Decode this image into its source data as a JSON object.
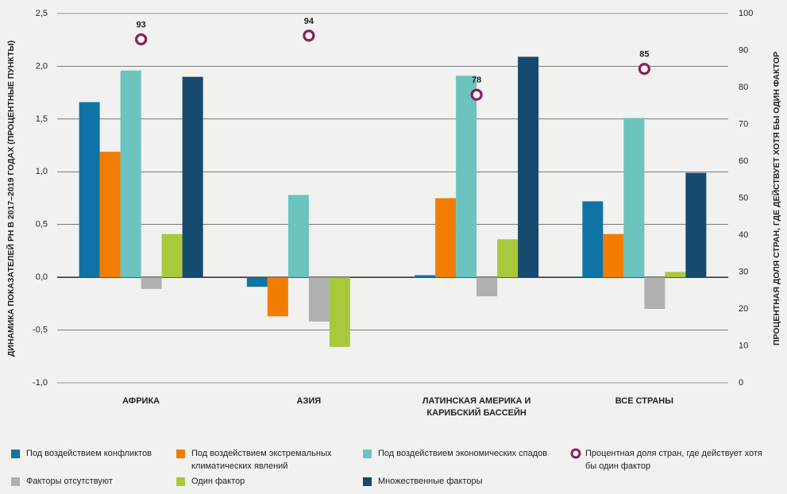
{
  "chart_data": {
    "type": "bar",
    "y_label": "ДИНАМИКА ПОКАЗАТЕЛЕЙ РН В 2017–2019 ГОДАХ (ПРОЦЕНТНЫЕ ПУНКТЫ)",
    "y2_label": "ПРОЦЕНТНАЯ ДОЛЯ СТРАН, ГДЕ ДЕЙСТВУЕТ ХОТЯ БЫ ОДИН ФАКТОР",
    "categories": [
      "АФРИКА",
      "АЗИЯ",
      "ЛАТИНСКАЯ АМЕРИКА И КАРИБСКИЙ БАССЕЙН",
      "ВСЕ СТРАНЫ"
    ],
    "series": [
      {
        "name": "Под воздействием конфликтов",
        "color": "#0f74a5",
        "values": [
          1.66,
          -0.09,
          0.02,
          0.72
        ]
      },
      {
        "name": "Под воздействием экстремальных климатических явлений",
        "color": "#f07d00",
        "values": [
          1.19,
          -0.37,
          0.75,
          0.41
        ]
      },
      {
        "name": "Под воздействием экономических спадов",
        "color": "#6cc3c0",
        "values": [
          1.96,
          0.78,
          1.91,
          1.51
        ]
      },
      {
        "name": "Факторы отсутствуют",
        "color": "#b0b0b0",
        "values": [
          -0.11,
          -0.42,
          -0.18,
          -0.3
        ]
      },
      {
        "name": "Один фактор",
        "color": "#a9c83c",
        "values": [
          0.41,
          -0.66,
          0.36,
          0.05
        ]
      },
      {
        "name": "Множественные факторы",
        "color": "#164a6f",
        "values": [
          1.9,
          null,
          2.09,
          0.99
        ]
      },
      {
        "name": "Процентная доля стран, где действует хотя бы один фактор",
        "color": "#8a1f5f",
        "axis": "y2",
        "values": [
          93,
          94,
          78,
          85
        ]
      }
    ],
    "ylim": [
      -1,
      2.5
    ],
    "yticks": [
      {
        "value": 2.5,
        "label": "2,5"
      },
      {
        "value": 2,
        "label": "2,0"
      },
      {
        "value": 1.5,
        "label": "1,5"
      },
      {
        "value": 1,
        "label": "1,0"
      },
      {
        "value": 0.5,
        "label": "0,5"
      },
      {
        "value": 0,
        "label": "0,0"
      },
      {
        "value": -0.5,
        "label": "-0,5"
      },
      {
        "value": -1,
        "label": "-1,0"
      }
    ],
    "y2lim": [
      0,
      100
    ],
    "y2ticks": [
      100,
      90,
      80,
      70,
      60,
      50,
      40,
      30,
      20,
      10,
      0
    ],
    "grid": true
  }
}
